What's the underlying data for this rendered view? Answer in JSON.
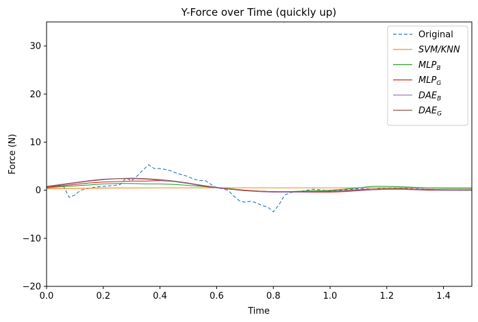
{
  "chart_data": {
    "type": "line",
    "title": "Y-Force over Time (quickly  up)",
    "xlabel": "Time",
    "ylabel": "Force (N)",
    "xlim": [
      0.0,
      1.5
    ],
    "ylim": [
      -20,
      35
    ],
    "xticks": [
      0.0,
      0.2,
      0.4,
      0.6,
      0.8,
      1.0,
      1.2,
      1.4
    ],
    "xtick_labels": [
      "0.0",
      "0.2",
      "0.4",
      "0.6",
      "0.8",
      "1.0",
      "1.2",
      "1.4"
    ],
    "yticks": [
      -20,
      -10,
      0,
      10,
      20,
      30
    ],
    "ytick_labels": [
      "−20",
      "−10",
      "0",
      "10",
      "20",
      "30"
    ],
    "grid": false,
    "legend_position": "top-right",
    "series": [
      {
        "name": "Original",
        "label_main": "Original",
        "label_sub": "",
        "italic": false,
        "color": "#1f77b4",
        "dash": "5,3",
        "x": [
          0.0,
          0.02,
          0.04,
          0.06,
          0.08,
          0.1,
          0.12,
          0.14,
          0.16,
          0.18,
          0.2,
          0.22,
          0.24,
          0.26,
          0.28,
          0.3,
          0.32,
          0.34,
          0.36,
          0.38,
          0.4,
          0.42,
          0.44,
          0.46,
          0.48,
          0.5,
          0.52,
          0.54,
          0.56,
          0.58,
          0.6,
          0.62,
          0.64,
          0.66,
          0.68,
          0.7,
          0.72,
          0.74,
          0.76,
          0.78,
          0.8,
          0.82,
          0.84,
          0.86,
          0.88,
          0.9,
          0.92,
          0.94,
          0.96,
          0.98,
          1.0,
          1.05,
          1.1,
          1.15,
          1.2,
          1.25,
          1.3,
          1.35,
          1.4,
          1.45,
          1.5
        ],
        "y": [
          0.5,
          0.8,
          1.0,
          0.8,
          -1.5,
          -1.0,
          0.0,
          0.3,
          0.5,
          0.7,
          0.8,
          0.9,
          1.0,
          1.2,
          2.5,
          2.0,
          3.0,
          4.2,
          5.3,
          4.5,
          4.5,
          4.3,
          4.0,
          3.5,
          3.2,
          2.8,
          2.3,
          2.0,
          2.0,
          1.2,
          0.5,
          0.3,
          0.0,
          -1.2,
          -2.2,
          -2.5,
          -2.3,
          -2.6,
          -3.2,
          -3.5,
          -4.5,
          -3.0,
          -1.0,
          -0.5,
          -0.3,
          -0.2,
          0.0,
          0.2,
          0.1,
          0.0,
          -0.1,
          0.1,
          0.3,
          0.2,
          0.5,
          0.4,
          0.3,
          0.2,
          0.1,
          0.0,
          0.0
        ]
      },
      {
        "name": "SVM/KNN",
        "label_main": "SVM/KNN",
        "label_sub": "",
        "italic": true,
        "color": "#ff7f0e",
        "dash": "",
        "x": [
          0.0,
          0.2,
          0.4,
          0.6,
          0.8,
          1.0,
          1.2,
          1.4,
          1.5
        ],
        "y": [
          0.3,
          0.45,
          0.5,
          0.5,
          0.5,
          0.5,
          0.5,
          0.5,
          0.5
        ]
      },
      {
        "name": "MLP_B",
        "label_main": "MLP",
        "label_sub": "B",
        "italic": true,
        "color": "#2ca02c",
        "dash": "",
        "x": [
          0.0,
          0.05,
          0.1,
          0.15,
          0.2,
          0.25,
          0.3,
          0.35,
          0.4,
          0.45,
          0.5,
          0.55,
          0.6,
          0.65,
          0.7,
          0.75,
          0.8,
          0.85,
          0.9,
          0.95,
          1.0,
          1.05,
          1.1,
          1.15,
          1.2,
          1.25,
          1.3,
          1.35,
          1.4,
          1.45,
          1.5
        ],
        "y": [
          0.5,
          0.7,
          0.9,
          1.1,
          1.3,
          1.4,
          1.4,
          1.3,
          1.3,
          1.2,
          1.0,
          0.8,
          0.5,
          0.3,
          0.0,
          -0.2,
          -0.3,
          -0.3,
          -0.2,
          -0.1,
          0.0,
          0.2,
          0.5,
          0.8,
          0.8,
          0.7,
          0.6,
          0.5,
          0.4,
          0.4,
          0.4
        ]
      },
      {
        "name": "MLP_G",
        "label_main": "MLP",
        "label_sub": "G",
        "italic": true,
        "color": "#d62728",
        "dash": "",
        "x": [
          0.0,
          0.05,
          0.1,
          0.15,
          0.2,
          0.25,
          0.3,
          0.35,
          0.4,
          0.45,
          0.5,
          0.55,
          0.6,
          0.65,
          0.7,
          0.75,
          0.8,
          0.85,
          0.9,
          0.95,
          1.0,
          1.05,
          1.1,
          1.15,
          1.2,
          1.25,
          1.3,
          1.35,
          1.4,
          1.45,
          1.5
        ],
        "y": [
          0.6,
          0.9,
          1.2,
          1.5,
          1.7,
          1.8,
          1.9,
          1.9,
          2.0,
          1.8,
          1.4,
          0.9,
          0.5,
          0.2,
          0.0,
          -0.2,
          -0.3,
          -0.4,
          -0.4,
          -0.4,
          -0.4,
          -0.3,
          -0.1,
          0.1,
          0.2,
          0.2,
          0.1,
          0.0,
          0.0,
          0.0,
          0.0
        ]
      },
      {
        "name": "DAE_B",
        "label_main": "DAE",
        "label_sub": "B",
        "italic": true,
        "color": "#9467bd",
        "dash": "",
        "x": [
          0.0,
          0.05,
          0.1,
          0.15,
          0.2,
          0.25,
          0.3,
          0.35,
          0.4,
          0.45,
          0.5,
          0.55,
          0.6,
          0.65,
          0.7,
          0.75,
          0.8,
          0.85,
          0.9,
          0.95,
          1.0,
          1.05,
          1.1,
          1.15,
          1.2,
          1.25,
          1.3,
          1.35,
          1.4,
          1.45,
          1.5
        ],
        "y": [
          0.8,
          1.2,
          1.6,
          2.0,
          2.3,
          2.4,
          2.4,
          2.3,
          2.1,
          1.8,
          1.4,
          1.0,
          0.5,
          0.2,
          -0.1,
          -0.3,
          -0.4,
          -0.4,
          -0.4,
          -0.3,
          -0.3,
          -0.2,
          0.0,
          0.1,
          0.2,
          0.2,
          0.1,
          0.1,
          0.0,
          0.0,
          0.0
        ]
      },
      {
        "name": "DAE_G",
        "label_main": "DAE",
        "label_sub": "G",
        "italic": true,
        "color": "#8c564b",
        "dash": "",
        "x": [
          0.0,
          0.05,
          0.1,
          0.15,
          0.2,
          0.25,
          0.3,
          0.35,
          0.4,
          0.45,
          0.5,
          0.55,
          0.6,
          0.65,
          0.7,
          0.75,
          0.8,
          0.85,
          0.9,
          0.95,
          1.0,
          1.05,
          1.1,
          1.15,
          1.2,
          1.25,
          1.3,
          1.35,
          1.4,
          1.45,
          1.5
        ],
        "y": [
          0.7,
          1.1,
          1.5,
          1.9,
          2.2,
          2.4,
          2.5,
          2.4,
          2.2,
          1.9,
          1.5,
          1.0,
          0.6,
          0.2,
          -0.1,
          -0.2,
          -0.3,
          -0.3,
          -0.3,
          -0.3,
          -0.2,
          -0.1,
          0.1,
          0.2,
          0.3,
          0.3,
          0.2,
          0.2,
          0.1,
          0.1,
          0.1
        ]
      }
    ]
  }
}
